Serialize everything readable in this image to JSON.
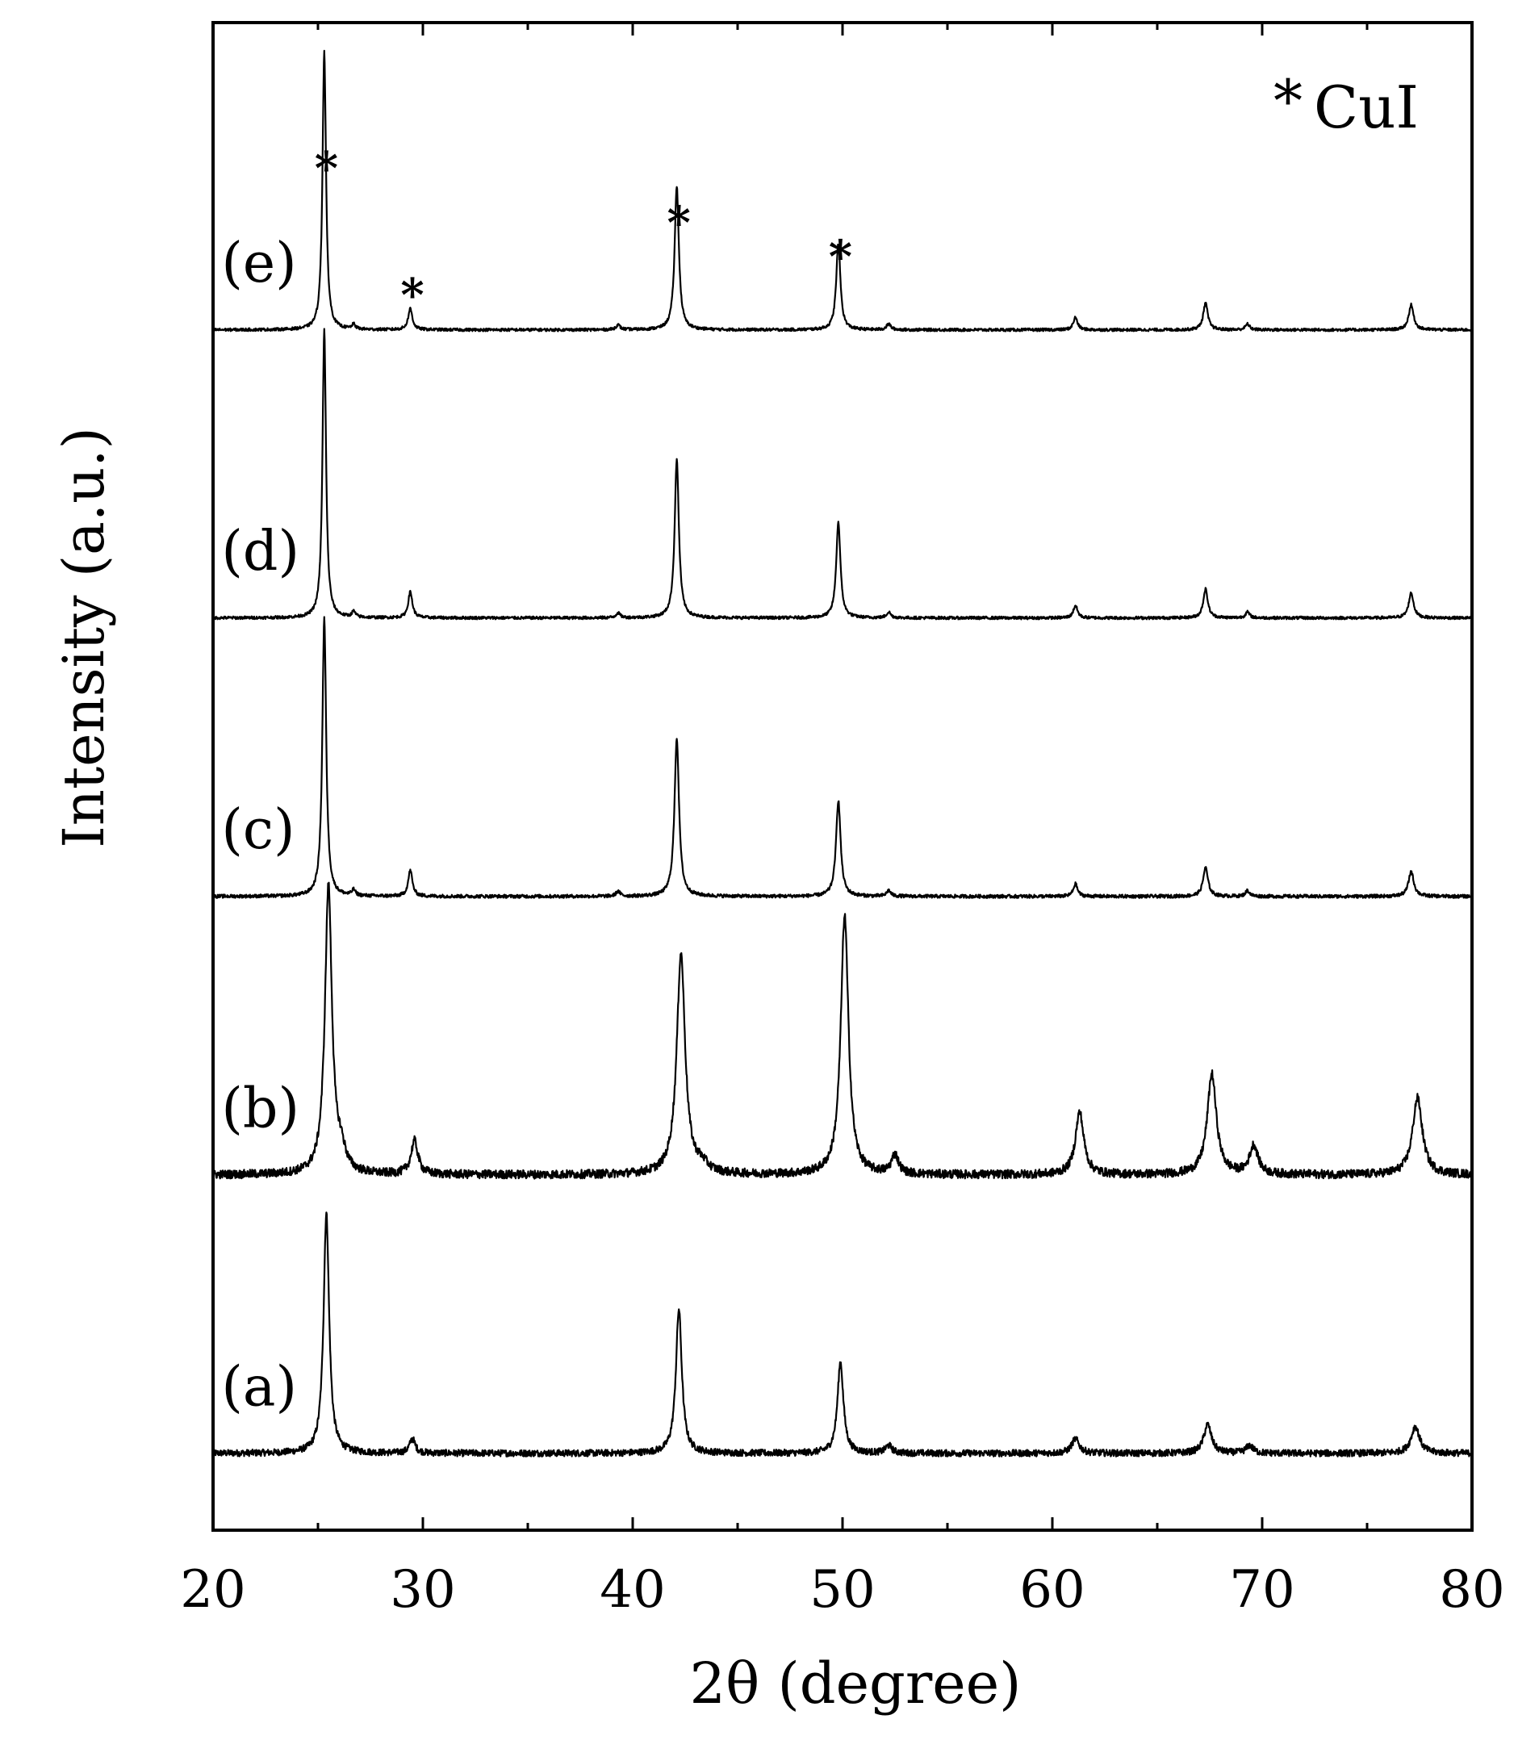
{
  "chart_data": {
    "type": "line",
    "xlabel": "2θ (degree)",
    "ylabel": "Intensity (a.u.)",
    "xlim": [
      20,
      80
    ],
    "x_ticks": [
      20,
      30,
      40,
      50,
      60,
      70,
      80
    ],
    "x_tick_labels": [
      "20",
      "30",
      "40",
      "50",
      "60",
      "70",
      "80"
    ],
    "grid": false,
    "y_ticks_shown": false,
    "stacked_offset": true,
    "legend": {
      "marker": "*",
      "text": "CuI",
      "placement": "top-right"
    },
    "peak_markers": [
      {
        "series": "(e)",
        "x": 25.4,
        "symbol": "*"
      },
      {
        "series": "(e)",
        "x": 29.5,
        "symbol": "*"
      },
      {
        "series": "(e)",
        "x": 42.2,
        "symbol": "*"
      },
      {
        "series": "(e)",
        "x": 49.9,
        "symbol": "*"
      }
    ],
    "series": [
      {
        "name": "(a)",
        "baseline": 0,
        "noise": 0.7,
        "peaks": [
          {
            "x": 25.4,
            "height": 25.0,
            "width": 0.16
          },
          {
            "x": 29.5,
            "height": 1.5,
            "width": 0.16
          },
          {
            "x": 42.2,
            "height": 15.0,
            "width": 0.17
          },
          {
            "x": 49.9,
            "height": 9.5,
            "width": 0.17
          },
          {
            "x": 52.2,
            "height": 0.8,
            "width": 0.18
          },
          {
            "x": 61.1,
            "height": 1.5,
            "width": 0.22
          },
          {
            "x": 67.4,
            "height": 3.0,
            "width": 0.22
          },
          {
            "x": 69.4,
            "height": 0.8,
            "width": 0.2
          },
          {
            "x": 77.3,
            "height": 2.8,
            "width": 0.24
          }
        ]
      },
      {
        "name": "(b)",
        "baseline": 29,
        "noise": 0.9,
        "peaks": [
          {
            "x": 25.5,
            "height": 30.0,
            "width": 0.2
          },
          {
            "x": 26.1,
            "height": 2.0,
            "width": 0.25
          },
          {
            "x": 29.6,
            "height": 3.5,
            "width": 0.2
          },
          {
            "x": 42.3,
            "height": 23.0,
            "width": 0.24
          },
          {
            "x": 43.3,
            "height": 0.8,
            "width": 0.35
          },
          {
            "x": 50.1,
            "height": 27.0,
            "width": 0.22
          },
          {
            "x": 52.5,
            "height": 2.0,
            "width": 0.2
          },
          {
            "x": 61.3,
            "height": 6.5,
            "width": 0.24
          },
          {
            "x": 67.6,
            "height": 10.5,
            "width": 0.26
          },
          {
            "x": 69.6,
            "height": 3.0,
            "width": 0.24
          },
          {
            "x": 77.4,
            "height": 8.0,
            "width": 0.28
          }
        ]
      },
      {
        "name": "(c)",
        "baseline": 58,
        "noise": 0.35,
        "peaks": [
          {
            "x": 25.3,
            "height": 29.0,
            "width": 0.11
          },
          {
            "x": 26.7,
            "height": 0.6,
            "width": 0.1
          },
          {
            "x": 29.4,
            "height": 2.7,
            "width": 0.12
          },
          {
            "x": 39.3,
            "height": 0.5,
            "width": 0.12
          },
          {
            "x": 42.1,
            "height": 16.5,
            "width": 0.13
          },
          {
            "x": 49.8,
            "height": 10.0,
            "width": 0.13
          },
          {
            "x": 52.2,
            "height": 0.6,
            "width": 0.12
          },
          {
            "x": 61.1,
            "height": 1.3,
            "width": 0.12
          },
          {
            "x": 67.3,
            "height": 3.0,
            "width": 0.14
          },
          {
            "x": 69.3,
            "height": 0.6,
            "width": 0.12
          },
          {
            "x": 77.1,
            "height": 2.6,
            "width": 0.15
          }
        ]
      },
      {
        "name": "(d)",
        "baseline": 87,
        "noise": 0.3,
        "peaks": [
          {
            "x": 25.3,
            "height": 30.0,
            "width": 0.1
          },
          {
            "x": 26.7,
            "height": 0.6,
            "width": 0.1
          },
          {
            "x": 29.4,
            "height": 2.7,
            "width": 0.12
          },
          {
            "x": 39.3,
            "height": 0.5,
            "width": 0.12
          },
          {
            "x": 42.1,
            "height": 16.5,
            "width": 0.12
          },
          {
            "x": 49.8,
            "height": 10.0,
            "width": 0.12
          },
          {
            "x": 52.2,
            "height": 0.6,
            "width": 0.12
          },
          {
            "x": 61.1,
            "height": 1.3,
            "width": 0.12
          },
          {
            "x": 67.3,
            "height": 3.0,
            "width": 0.13
          },
          {
            "x": 69.3,
            "height": 0.6,
            "width": 0.12
          },
          {
            "x": 77.1,
            "height": 2.6,
            "width": 0.14
          }
        ]
      },
      {
        "name": "(e)",
        "baseline": 117,
        "noise": 0.3,
        "peaks": [
          {
            "x": 25.3,
            "height": 29.0,
            "width": 0.1
          },
          {
            "x": 26.7,
            "height": 0.5,
            "width": 0.1
          },
          {
            "x": 29.4,
            "height": 2.2,
            "width": 0.12
          },
          {
            "x": 39.3,
            "height": 0.5,
            "width": 0.12
          },
          {
            "x": 42.1,
            "height": 15.0,
            "width": 0.12
          },
          {
            "x": 49.8,
            "height": 9.0,
            "width": 0.12
          },
          {
            "x": 52.2,
            "height": 0.6,
            "width": 0.12
          },
          {
            "x": 61.1,
            "height": 1.3,
            "width": 0.12
          },
          {
            "x": 67.3,
            "height": 2.8,
            "width": 0.13
          },
          {
            "x": 69.3,
            "height": 0.6,
            "width": 0.12
          },
          {
            "x": 77.1,
            "height": 2.6,
            "width": 0.14
          }
        ]
      }
    ],
    "ylim": [
      -8,
      149
    ]
  }
}
